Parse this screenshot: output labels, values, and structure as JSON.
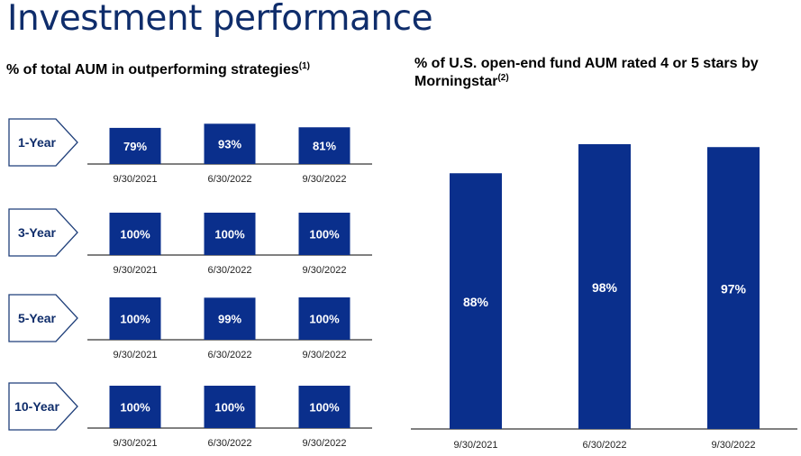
{
  "title": "Investment performance",
  "left_panel": {
    "subtitle": "% of total AUM in outperforming strategies",
    "footnote": "(1)"
  },
  "right_panel": {
    "subtitle": "% of U.S. open-end fund AUM rated 4 or 5 stars by Morningstar",
    "footnote": "(2)"
  },
  "colors": {
    "bar": "#0a2f8c",
    "title": "#0f2d6b",
    "label_text": "#0f2d6b"
  },
  "chart_data": [
    {
      "type": "bar",
      "label": "1-Year",
      "categories": [
        "9/30/2021",
        "6/30/2022",
        "9/30/2022"
      ],
      "values": [
        79,
        93,
        81
      ],
      "data_labels": [
        "79%",
        "93%",
        "81%"
      ],
      "ylim": [
        0,
        100
      ]
    },
    {
      "type": "bar",
      "label": "3-Year",
      "categories": [
        "9/30/2021",
        "6/30/2022",
        "9/30/2022"
      ],
      "values": [
        100,
        100,
        100
      ],
      "data_labels": [
        "100%",
        "100%",
        "100%"
      ],
      "ylim": [
        0,
        100
      ]
    },
    {
      "type": "bar",
      "label": "5-Year",
      "categories": [
        "9/30/2021",
        "6/30/2022",
        "9/30/2022"
      ],
      "values": [
        100,
        99,
        100
      ],
      "data_labels": [
        "100%",
        "99%",
        "100%"
      ],
      "ylim": [
        0,
        100
      ]
    },
    {
      "type": "bar",
      "label": "10-Year",
      "categories": [
        "9/30/2021",
        "6/30/2022",
        "9/30/2022"
      ],
      "values": [
        100,
        100,
        100
      ],
      "data_labels": [
        "100%",
        "100%",
        "100%"
      ],
      "ylim": [
        0,
        100
      ]
    },
    {
      "type": "bar",
      "categories": [
        "9/30/2021",
        "6/30/2022",
        "9/30/2022"
      ],
      "values": [
        88,
        98,
        97
      ],
      "data_labels": [
        "88%",
        "98%",
        "97%"
      ],
      "ylim": [
        0,
        100
      ]
    }
  ]
}
